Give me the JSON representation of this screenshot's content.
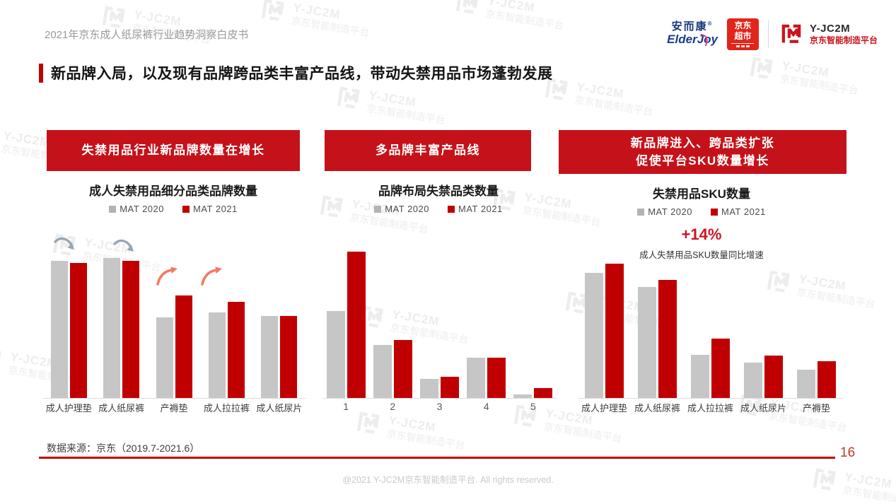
{
  "header": {
    "doc_title": "2021年京东成人纸尿裤行业趋势洞察白皮书",
    "logos": {
      "elderjoy_cn": "安而康",
      "elderjoy_reg": "®",
      "elderjoy_en": "ElderJoy",
      "jd_line1": "京东",
      "jd_line2": "超市",
      "yjc2m_name": "Y-JC2M",
      "yjc2m_sub": "京东智能制造平台"
    }
  },
  "title": "新品牌入局，以及现有品牌跨品类丰富产品线，带动失禁用品市场蓬勃发展",
  "watermark": {
    "line1": "Y-JC2M",
    "line2": "京东智能制造平台"
  },
  "colors": {
    "banner_red": "#c5121a",
    "bar_red": "#c00000",
    "bar_gray": "#c6c6c6",
    "accent_red": "#c00000",
    "arrow_down_gray": "#97a6b4",
    "arrow_up_salmon": "#f07b63"
  },
  "chart_data": [
    {
      "type": "bar",
      "banner": "失禁用品行业新品牌数量在增长",
      "title": "成人失禁用品细分品类品牌数量",
      "categories": [
        "成人护理垫",
        "成人纸尿裤",
        "产褥垫",
        "成人拉拉裤",
        "成人纸尿片"
      ],
      "series": [
        {
          "name": "MAT 2020",
          "color": "#c6c6c6",
          "values": [
            80,
            82,
            47,
            50,
            48
          ]
        },
        {
          "name": "MAT 2021",
          "color": "#c00000",
          "values": [
            79,
            80,
            60,
            56,
            48
          ]
        }
      ],
      "legend_position": "top",
      "value_axis": "hidden; values are relative heights (% of plot) estimated from pixels",
      "annotations": [
        {
          "type": "arrow-down",
          "color": "#97a6b4",
          "targets": [
            "成人护理垫",
            "成人纸尿裤"
          ]
        },
        {
          "type": "arrow-up",
          "color": "#f07b63",
          "targets": [
            "产褥垫",
            "成人拉拉裤"
          ]
        }
      ]
    },
    {
      "type": "bar",
      "banner": "多品牌丰富产品线",
      "title": "品牌布局失禁品类数量",
      "categories": [
        "1",
        "2",
        "3",
        "4",
        "5"
      ],
      "series": [
        {
          "name": "MAT 2020",
          "color": "#c6c6c6",
          "values": [
            54,
            33,
            12,
            25,
            2
          ]
        },
        {
          "name": "MAT 2021",
          "color": "#c00000",
          "values": [
            91,
            36,
            13,
            25,
            6
          ]
        }
      ],
      "legend_position": "top",
      "value_axis": "hidden; values are relative heights (% of plot) estimated from pixels"
    },
    {
      "type": "bar",
      "banner": "新品牌进入、跨品类扩张\n促使平台SKU数量增长",
      "title": "失禁用品SKU数量",
      "categories": [
        "成人护理垫",
        "成人纸尿裤",
        "成人拉拉裤",
        "成人纸尿片",
        "产褥垫"
      ],
      "series": [
        {
          "name": "MAT 2020",
          "color": "#c6c6c6",
          "values": [
            92,
            82,
            32,
            26,
            21
          ]
        },
        {
          "name": "MAT 2021",
          "color": "#c00000",
          "values": [
            99,
            87,
            44,
            31,
            27
          ]
        }
      ],
      "legend_position": "top",
      "value_axis": "hidden; values are relative heights (% of plot) estimated from pixels",
      "annotations": [
        {
          "type": "growth-callout",
          "text": "+14%",
          "note": "成人失禁用品SKU数量同比增速"
        }
      ]
    }
  ],
  "footer": {
    "source": "数据来源：京东（2019.7-2021.6）",
    "page": "16",
    "copyright": "@2021 Y-JC2M京东智能制造平台. All rights reserved."
  }
}
